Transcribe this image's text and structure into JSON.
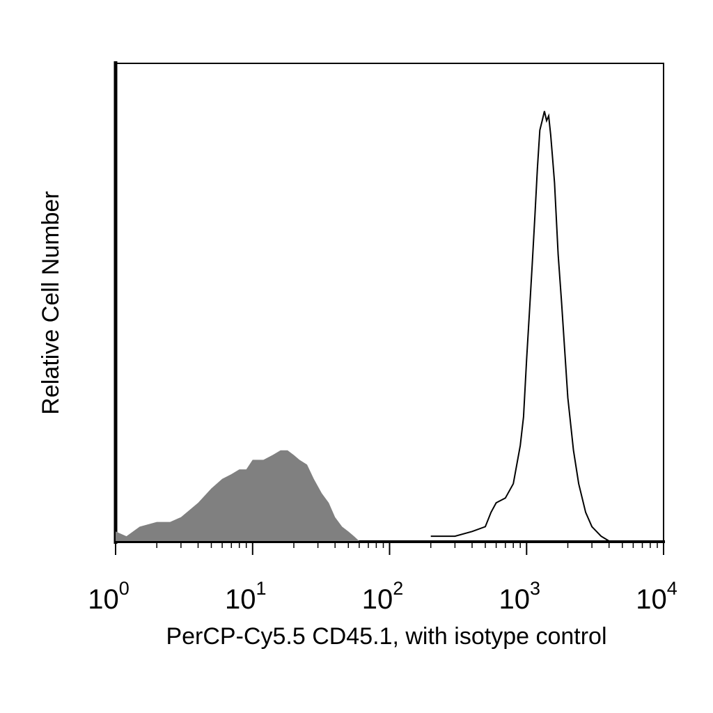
{
  "chart_data": {
    "type": "area",
    "title": "",
    "xlabel": "PerCP-Cy5.5 CD45.1, with isotype control",
    "ylabel": "Relative Cell Number",
    "x_scale": "log",
    "xlim": [
      1,
      10000
    ],
    "ylim": [
      0,
      1
    ],
    "grid": false,
    "legend": "none",
    "x_ticks": [
      {
        "value": 1,
        "base": "10",
        "exp": "0"
      },
      {
        "value": 10,
        "base": "10",
        "exp": "1"
      },
      {
        "value": 100,
        "base": "10",
        "exp": "2"
      },
      {
        "value": 1000,
        "base": "10",
        "exp": "3"
      },
      {
        "value": 10000,
        "base": "10",
        "exp": "4"
      }
    ],
    "series": [
      {
        "style": "filled",
        "color": "#808080",
        "x": [
          1,
          1.2,
          1.5,
          2,
          2.5,
          3,
          4,
          5,
          6,
          7,
          8,
          9,
          10,
          12,
          14,
          16,
          18,
          20,
          22,
          25,
          28,
          32,
          36,
          40,
          45,
          50,
          55,
          60
        ],
        "y": [
          0.02,
          0.01,
          0.03,
          0.04,
          0.04,
          0.05,
          0.08,
          0.11,
          0.13,
          0.14,
          0.15,
          0.15,
          0.17,
          0.17,
          0.18,
          0.19,
          0.19,
          0.18,
          0.17,
          0.16,
          0.13,
          0.1,
          0.08,
          0.05,
          0.03,
          0.02,
          0.01,
          0.0
        ]
      },
      {
        "style": "outline",
        "color": "#000000",
        "x": [
          200,
          300,
          400,
          500,
          550,
          600,
          700,
          800,
          900,
          950,
          1000,
          1050,
          1100,
          1150,
          1200,
          1250,
          1300,
          1350,
          1400,
          1450,
          1500,
          1550,
          1600,
          1700,
          1800,
          2000,
          2200,
          2400,
          2700,
          3000,
          3500,
          4000
        ],
        "y": [
          0.01,
          0.01,
          0.02,
          0.03,
          0.06,
          0.08,
          0.09,
          0.12,
          0.2,
          0.26,
          0.38,
          0.48,
          0.58,
          0.68,
          0.78,
          0.86,
          0.88,
          0.9,
          0.88,
          0.89,
          0.85,
          0.8,
          0.75,
          0.6,
          0.5,
          0.3,
          0.19,
          0.12,
          0.06,
          0.03,
          0.01,
          0.0
        ]
      }
    ]
  }
}
